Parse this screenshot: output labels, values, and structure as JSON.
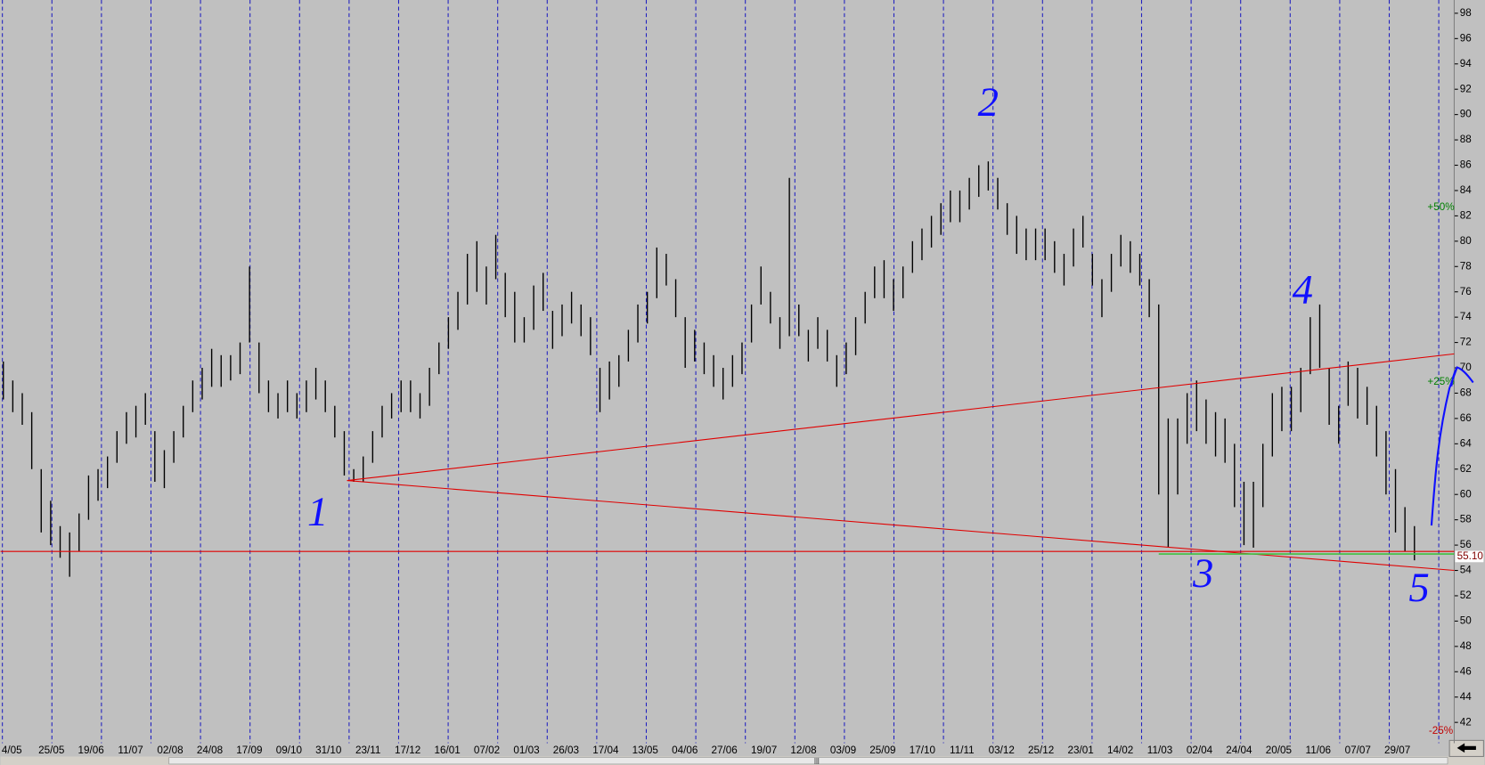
{
  "chart_data": {
    "type": "ohlc",
    "ylim": [
      42,
      98
    ],
    "yticks": [
      42,
      44,
      46,
      48,
      50,
      52,
      54,
      56,
      58,
      60,
      62,
      64,
      66,
      68,
      70,
      72,
      74,
      76,
      78,
      80,
      82,
      84,
      86,
      88,
      90,
      92,
      94,
      96,
      98
    ],
    "categories": [
      "4/05",
      "25/05",
      "19/06",
      "11/07",
      "02/08",
      "24/08",
      "17/09",
      "09/10",
      "31/10",
      "23/11",
      "17/12",
      "16/01",
      "07/02",
      "01/03",
      "26/03",
      "17/04",
      "13/05",
      "04/06",
      "27/06",
      "19/07",
      "12/08",
      "03/09",
      "25/09",
      "17/10",
      "11/11",
      "03/12",
      "25/12",
      "23/01",
      "14/02",
      "11/03",
      "02/04",
      "24/04",
      "20/05",
      "11/06",
      "07/07",
      "29/07"
    ],
    "color": "#000000",
    "high": [
      70.5,
      69,
      68,
      66.5,
      62,
      59.5,
      57.5,
      57,
      58.5,
      61.5,
      62,
      63,
      65,
      66.5,
      67,
      68,
      65,
      63.5,
      65,
      67,
      69,
      70,
      71.5,
      71,
      71,
      72,
      78,
      72,
      69,
      68,
      69,
      68,
      69,
      70,
      69,
      67,
      65,
      62,
      63,
      65,
      67,
      68,
      69,
      69,
      68,
      70,
      72,
      74,
      76,
      79,
      80,
      78,
      80.5,
      77.5,
      76,
      74,
      76.5,
      77.5,
      74.5,
      75,
      76,
      75,
      74,
      70,
      70.5,
      71,
      73,
      75,
      76,
      79.5,
      79,
      77,
      74,
      73,
      72,
      71,
      70,
      71,
      72,
      75,
      78,
      76,
      74,
      85,
      75,
      73,
      74,
      73,
      71,
      72,
      74,
      76,
      78,
      78.5,
      77,
      78,
      80,
      81,
      82,
      83,
      84,
      84,
      85,
      86,
      86.3,
      85,
      83,
      82,
      81,
      81,
      81,
      80,
      79,
      81,
      82,
      79,
      77,
      79,
      80.5,
      80,
      79,
      77,
      75,
      66,
      66,
      68,
      69,
      67.5,
      66.5,
      66,
      64,
      61,
      61,
      64,
      68,
      68.5,
      68.5,
      70,
      74,
      75,
      70,
      67,
      70.5,
      70,
      68.5,
      67,
      65,
      62,
      59,
      57.5
    ],
    "low": [
      67.5,
      66.5,
      65.5,
      62,
      57,
      56,
      55,
      53.5,
      55.5,
      58,
      59.5,
      60.5,
      62.5,
      64,
      64.5,
      65.5,
      61,
      60.5,
      62.5,
      64.5,
      66.5,
      67.5,
      68.5,
      68.5,
      69,
      69.5,
      72,
      68,
      66.5,
      66,
      66.5,
      66,
      66.5,
      67.5,
      66.5,
      64.5,
      61.5,
      61,
      61,
      62.5,
      64.5,
      66,
      66.5,
      66.5,
      66,
      67,
      69.5,
      71.5,
      73,
      75,
      76,
      75,
      77,
      74,
      72,
      72,
      73,
      74.5,
      71.5,
      72.5,
      73.5,
      72.5,
      71,
      66.5,
      67.5,
      68.5,
      70.5,
      72,
      73.5,
      75.5,
      76.5,
      74,
      70,
      70.5,
      69.5,
      68.5,
      67.5,
      68.5,
      69.5,
      72,
      75,
      73.5,
      71.5,
      72.5,
      72.5,
      70.5,
      71.5,
      70.5,
      68.5,
      69.5,
      71,
      73.5,
      75.5,
      75.5,
      74.5,
      75.5,
      77.5,
      78.5,
      79.5,
      80.5,
      81.5,
      81.5,
      82.5,
      83.5,
      84,
      82.5,
      80.5,
      79,
      78.5,
      78.5,
      78.5,
      77.5,
      76.5,
      78,
      79.5,
      76.5,
      74,
      76,
      78,
      77.5,
      76.5,
      74,
      60,
      55.8,
      60,
      64,
      65,
      64,
      63,
      62.5,
      59,
      56,
      55.8,
      59,
      63,
      65,
      65,
      66.5,
      69.5,
      70,
      65.5,
      64,
      67,
      66,
      65.5,
      63,
      60,
      57,
      55.5,
      54.8
    ],
    "trendlines": [
      {
        "color": "#e00000",
        "x": [
          36.3,
          153.2
        ],
        "y": [
          61.1,
          71.1
        ]
      },
      {
        "color": "#e00000",
        "x": [
          36.3,
          153.2
        ],
        "y": [
          61.1,
          54
        ]
      }
    ],
    "support": {
      "value": 55.5,
      "color": "#e00000"
    },
    "green_line": {
      "value": 55.3,
      "color": "#40c040",
      "x": [
        122,
        153.2
      ]
    },
    "price_label": {
      "value": 55.1,
      "label": "55.10"
    },
    "percent_marks": [
      {
        "value": 82.65,
        "label": "+50%",
        "color": "#008000"
      },
      {
        "value": 68.9,
        "label": "+25%",
        "color": "#008000"
      },
      {
        "value": 41.3,
        "label": "-25%",
        "color": "#c00000"
      }
    ],
    "annotations": [
      "1",
      "2",
      "3",
      "4",
      "5"
    ],
    "scrollbar_grip": "|||"
  }
}
